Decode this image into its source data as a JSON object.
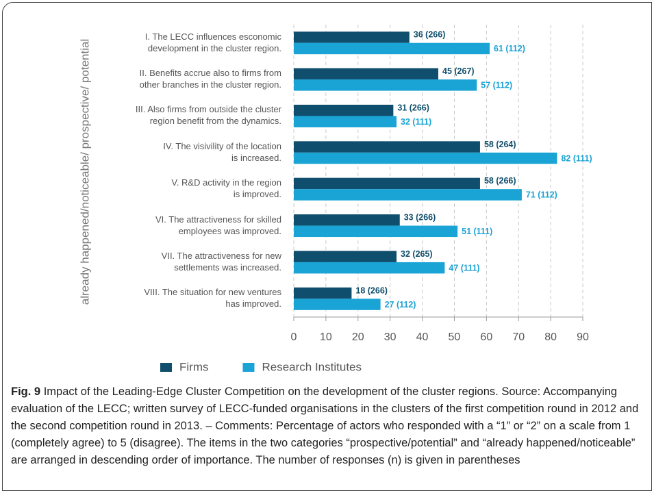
{
  "chart_data": {
    "type": "barh",
    "y_label": "already happened/noticeable/ prospective/ potential",
    "categories": [
      "I. The LECC influences esconomic\ndevelopment in the cluster region.",
      "II. Benefits accrue also to firms from\nother branches in the cluster region.",
      "III. Also firms from outside the cluster\nregion benefit from the dynamics.",
      "IV. The visivility of the location\nis increased.",
      "V. R&D activity in the region\nis improved.",
      "VI. The attractiveness for skilled\nemployees was improved.",
      "VII. The attractiveness for new\nsettlements was increased.",
      "VIII. The situation for new ventures\nhas improved."
    ],
    "series": [
      {
        "name": "Firms",
        "color": "#0f4e6c",
        "values": [
          36,
          45,
          31,
          58,
          58,
          33,
          32,
          18
        ],
        "value_labels": [
          "36 (266)",
          "45 (267)",
          "31 (266)",
          "58 (264)",
          "58 (266)",
          "33 (266)",
          "32 (265)",
          "18 (266)"
        ]
      },
      {
        "name": "Research Institutes",
        "color": "#1aa3d5",
        "values": [
          61,
          57,
          32,
          82,
          71,
          51,
          47,
          27
        ],
        "value_labels": [
          "61 (112)",
          "57 (112)",
          "32 (111)",
          "82 (111)",
          "71 (112)",
          "51 (111)",
          "47 (111)",
          "27 (112)"
        ]
      }
    ],
    "xlim": [
      0,
      90
    ],
    "xticks": [
      0,
      10,
      20,
      30,
      40,
      50,
      60,
      70,
      80,
      90
    ],
    "grid": true,
    "legend": "bottom",
    "caption": {
      "label": "Fig. 9",
      "text": "Impact of the Leading-Edge Cluster Competition on the development of the cluster regions. Source: Accompanying evaluation of the LECC; written survey of LECC-funded organisations in the clusters of the first competition round in 2012 and the second competition round in 2013. – Comments: Percentage of actors who responded with a “1” or “2” on a scale from 1 (completely agree) to 5 (disagree). The items in the two categories “prospective/potential” and “already happened/noticeable” are arranged in descending order of importance. The number of responses (n) is given in parentheses"
    }
  }
}
